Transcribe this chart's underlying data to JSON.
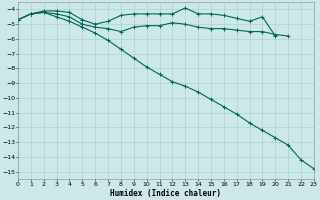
{
  "xlabel": "Humidex (Indice chaleur)",
  "xlim": [
    0,
    23
  ],
  "ylim": [
    -15.5,
    -3.5
  ],
  "yticks": [
    -4,
    -5,
    -6,
    -7,
    -8,
    -9,
    -10,
    -11,
    -12,
    -13,
    -14,
    -15
  ],
  "xticks": [
    0,
    1,
    2,
    3,
    4,
    5,
    6,
    7,
    8,
    9,
    10,
    11,
    12,
    13,
    14,
    15,
    16,
    17,
    18,
    19,
    20,
    21,
    22,
    23
  ],
  "bg_color": "#cce8e8",
  "grid_color": "#a8cccc",
  "line_color": "#006655",
  "line1_x": [
    0,
    1,
    2,
    3,
    4,
    5,
    6,
    7,
    8,
    9,
    10,
    11,
    12,
    13,
    14,
    15,
    16,
    17,
    18,
    19,
    20
  ],
  "line1_y": [
    -4.7,
    -4.3,
    -4.1,
    -4.1,
    -4.2,
    -4.7,
    -5.0,
    -4.8,
    -4.4,
    -4.3,
    -4.3,
    -4.3,
    -4.3,
    -3.9,
    -4.3,
    -4.3,
    -4.4,
    -4.6,
    -4.8,
    -4.5,
    -5.8
  ],
  "line2_x": [
    0,
    1,
    2,
    3,
    4,
    5,
    6,
    7,
    8,
    9,
    10,
    11,
    12,
    13,
    14,
    15,
    16,
    17,
    18,
    19,
    20,
    21
  ],
  "line2_y": [
    -4.7,
    -4.3,
    -4.2,
    -4.3,
    -4.5,
    -5.0,
    -5.2,
    -5.3,
    -5.5,
    -5.2,
    -5.1,
    -5.1,
    -4.9,
    -5.0,
    -5.2,
    -5.3,
    -5.3,
    -5.4,
    -5.5,
    -5.5,
    -5.7,
    -5.8
  ],
  "line3_x": [
    0,
    1,
    2,
    3,
    4,
    5,
    6,
    7,
    8,
    9,
    10,
    11,
    12,
    13,
    14,
    15,
    16,
    17,
    18,
    19,
    20,
    21,
    22,
    23
  ],
  "line3_y": [
    -4.7,
    -4.3,
    -4.2,
    -4.5,
    -4.8,
    -5.2,
    -5.6,
    -6.1,
    -6.7,
    -7.3,
    -7.9,
    -8.4,
    -8.9,
    -9.2,
    -9.6,
    -10.1,
    -10.6,
    -11.1,
    -11.7,
    -12.2,
    -12.7,
    -13.2,
    -14.2,
    -14.8
  ]
}
